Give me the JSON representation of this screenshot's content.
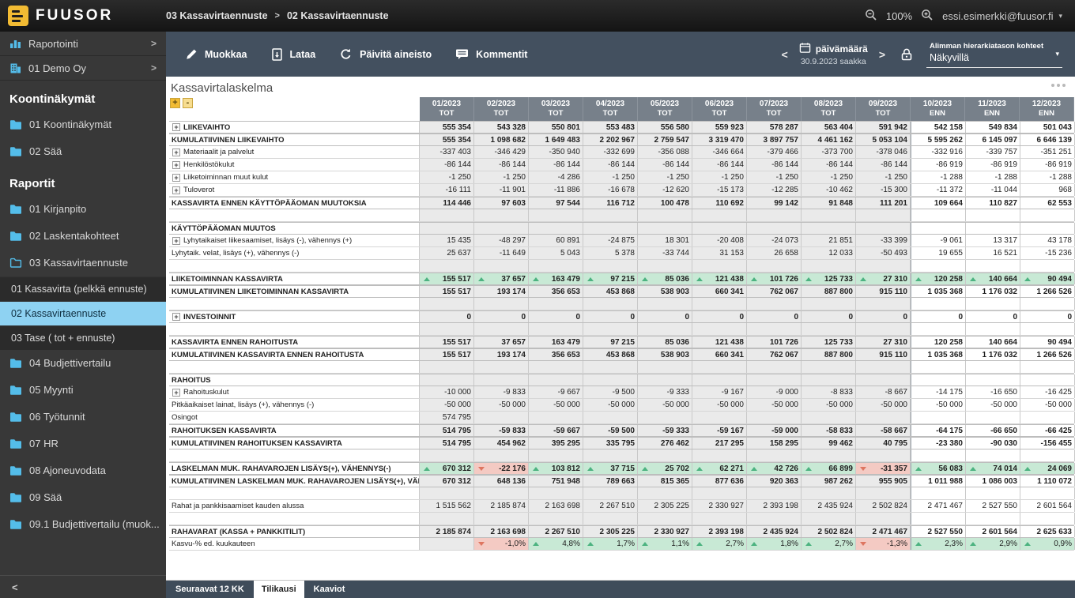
{
  "colors": {
    "logo_yellow": "#f2bb33",
    "accent": "#54bdea",
    "selected": "#8ed2f2",
    "positive": "#4db381",
    "negative": "#de7560",
    "positive_bg": "#c8e9d5",
    "negative_bg": "#f4cac3"
  },
  "topbar": {
    "logo_text": "FUUSOR",
    "breadcrumb": [
      "03 Kassavirtaennuste",
      "02 Kassavirtaennuste"
    ],
    "zoom_level": "100%",
    "user_email": "essi.esimerkki@fuusor.fi"
  },
  "sidebar": {
    "nav_top": [
      {
        "label": "Raportointi",
        "icon": "bar-chart-icon"
      },
      {
        "label": "01 Demo Oy",
        "icon": "company-icon"
      }
    ],
    "sections": [
      {
        "title": "Koontinäkymät",
        "items": [
          {
            "label": "01 Koontinäkymät",
            "icon": "folder-icon"
          },
          {
            "label": "02 Sää",
            "icon": "folder-icon"
          }
        ]
      },
      {
        "title": "Raportit",
        "items": [
          {
            "label": "01 Kirjanpito",
            "icon": "folder-icon"
          },
          {
            "label": "02 Laskentakohteet",
            "icon": "folder-icon"
          },
          {
            "label": "03 Kassavirtaennuste",
            "icon": "folder-open-icon",
            "children": [
              {
                "label": "01 Kassavirta (pelkkä ennuste)"
              },
              {
                "label": "02 Kassavirtaennuste",
                "selected": true
              },
              {
                "label": "03 Tase ( tot + ennuste)"
              }
            ]
          },
          {
            "label": "04 Budjettivertailu",
            "icon": "folder-icon"
          },
          {
            "label": "05 Myynti",
            "icon": "folder-icon"
          },
          {
            "label": "06 Työtunnit",
            "icon": "folder-icon"
          },
          {
            "label": "07 HR",
            "icon": "folder-icon"
          },
          {
            "label": "08 Ajoneuvodata",
            "icon": "folder-icon"
          },
          {
            "label": "09 Sää",
            "icon": "folder-icon"
          },
          {
            "label": "09.1 Budjettivertailu (muok...",
            "icon": "folder-icon"
          }
        ]
      }
    ]
  },
  "toolbar": {
    "buttons": [
      {
        "label": "Muokkaa",
        "icon": "pencil-icon"
      },
      {
        "label": "Lataa",
        "icon": "download-icon"
      },
      {
        "label": "Päivitä aineisto",
        "icon": "refresh-icon"
      },
      {
        "label": "Kommentit",
        "icon": "comment-icon"
      }
    ],
    "date_nav": {
      "label": "päivämäärä",
      "sublabel": "30.9.2023 saakka"
    },
    "hierarchy_dropdown": {
      "label": "Alimman hierarkiatason kohteet",
      "value": "Näkyvillä"
    }
  },
  "widget": {
    "title": "Kassavirtalaskelma",
    "expand_all": "+",
    "collapse_all": "-"
  },
  "chart_data": {
    "type": "table",
    "title": "Kassavirtalaskelma",
    "columns": [
      {
        "month": "01/2023",
        "type": "TOT"
      },
      {
        "month": "02/2023",
        "type": "TOT"
      },
      {
        "month": "03/2023",
        "type": "TOT"
      },
      {
        "month": "04/2023",
        "type": "TOT"
      },
      {
        "month": "05/2023",
        "type": "TOT"
      },
      {
        "month": "06/2023",
        "type": "TOT"
      },
      {
        "month": "07/2023",
        "type": "TOT"
      },
      {
        "month": "08/2023",
        "type": "TOT"
      },
      {
        "month": "09/2023",
        "type": "TOT"
      },
      {
        "month": "10/2023",
        "type": "ENN"
      },
      {
        "month": "11/2023",
        "type": "ENN"
      },
      {
        "month": "12/2023",
        "type": "ENN"
      }
    ],
    "rows": [
      {
        "label": "LIIKEVAIHTO",
        "bold": true,
        "exp": true,
        "values": [
          "555 354",
          "543 328",
          "550 801",
          "553 483",
          "556 580",
          "559 923",
          "578 287",
          "563 404",
          "591 942",
          "542 158",
          "549 834",
          "501 043"
        ]
      },
      {
        "label": "KUMULATIIVINEN LIIKEVAIHTO",
        "bold": true,
        "values": [
          "555 354",
          "1 098 682",
          "1 649 483",
          "2 202 967",
          "2 759 547",
          "3 319 470",
          "3 897 757",
          "4 461 162",
          "5 053 104",
          "5 595 262",
          "6 145 097",
          "6 646 139"
        ]
      },
      {
        "label": "Materiaalit ja palvelut",
        "exp": true,
        "values": [
          "-337 403",
          "-346 429",
          "-350 940",
          "-332 699",
          "-356 088",
          "-346 664",
          "-379 466",
          "-373 700",
          "-378 046",
          "-332 916",
          "-339 757",
          "-351 251"
        ]
      },
      {
        "label": "Henkilöstökulut",
        "exp": true,
        "values": [
          "-86 144",
          "-86 144",
          "-86 144",
          "-86 144",
          "-86 144",
          "-86 144",
          "-86 144",
          "-86 144",
          "-86 144",
          "-86 919",
          "-86 919",
          "-86 919"
        ]
      },
      {
        "label": "Liiketoiminnan muut kulut",
        "exp": true,
        "values": [
          "-1 250",
          "-1 250",
          "-4 286",
          "-1 250",
          "-1 250",
          "-1 250",
          "-1 250",
          "-1 250",
          "-1 250",
          "-1 288",
          "-1 288",
          "-1 288"
        ]
      },
      {
        "label": "Tuloverot",
        "exp": true,
        "values": [
          "-16 111",
          "-11 901",
          "-11 886",
          "-16 678",
          "-12 620",
          "-15 173",
          "-12 285",
          "-10 462",
          "-15 300",
          "-11 372",
          "-11 044",
          "968"
        ]
      },
      {
        "label": "KASSAVIRTA ENNEN KÄYTTÖPÄÄOMAN MUUTOKSIA",
        "bold": true,
        "values": [
          "114 446",
          "97 603",
          "97 544",
          "116 712",
          "100 478",
          "110 692",
          "99 142",
          "91 848",
          "111 201",
          "109 664",
          "110 827",
          "62 553"
        ]
      },
      {
        "blank": true
      },
      {
        "label": "KÄYTTÖPÄÄOMAN MUUTOS",
        "bold": true,
        "values": [
          "",
          "",
          "",
          "",
          "",
          "",
          "",
          "",
          "",
          "",
          "",
          ""
        ]
      },
      {
        "label": "Lyhytaikaiset liikesaamiset, lisäys (-), vähennys (+)",
        "exp": true,
        "values": [
          "15 435",
          "-48 297",
          "60 891",
          "-24 875",
          "18 301",
          "-20 408",
          "-24 073",
          "21 851",
          "-33 399",
          "-9 061",
          "13 317",
          "43 178"
        ]
      },
      {
        "label": "Lyhytaik. velat, lisäys (+), vähennys (-)",
        "values": [
          "25 637",
          "-11 649",
          "5 043",
          "5 378",
          "-33 744",
          "31 153",
          "26 658",
          "12 033",
          "-50 493",
          "19 655",
          "16 521",
          "-15 236"
        ]
      },
      {
        "blank": true
      },
      {
        "label": "LIIKETOIMINNAN KASSAVIRTA",
        "bold": true,
        "ind": true,
        "values": [
          "155 517",
          "37 657",
          "163 479",
          "97 215",
          "85 036",
          "121 438",
          "101 726",
          "125 733",
          "27 310",
          "120 258",
          "140 664",
          "90 494"
        ]
      },
      {
        "label": "KUMULATIIVINEN LIIKETOIMINNAN KASSAVIRTA",
        "bold": true,
        "values": [
          "155 517",
          "193 174",
          "356 653",
          "453 868",
          "538 903",
          "660 341",
          "762 067",
          "887 800",
          "915 110",
          "1 035 368",
          "1 176 032",
          "1 266 526"
        ]
      },
      {
        "blank": true
      },
      {
        "label": "INVESTOINNIT",
        "bold": true,
        "exp": true,
        "values": [
          "0",
          "0",
          "0",
          "0",
          "0",
          "0",
          "0",
          "0",
          "0",
          "0",
          "0",
          "0"
        ]
      },
      {
        "blank": true
      },
      {
        "label": "KASSAVIRTA ENNEN RAHOITUSTA",
        "bold": true,
        "values": [
          "155 517",
          "37 657",
          "163 479",
          "97 215",
          "85 036",
          "121 438",
          "101 726",
          "125 733",
          "27 310",
          "120 258",
          "140 664",
          "90 494"
        ]
      },
      {
        "label": "KUMULATIIVINEN KASSAVIRTA ENNEN RAHOITUSTA",
        "bold": true,
        "values": [
          "155 517",
          "193 174",
          "356 653",
          "453 868",
          "538 903",
          "660 341",
          "762 067",
          "887 800",
          "915 110",
          "1 035 368",
          "1 176 032",
          "1 266 526"
        ]
      },
      {
        "blank": true
      },
      {
        "label": "RAHOITUS",
        "bold": true,
        "values": [
          "",
          "",
          "",
          "",
          "",
          "",
          "",
          "",
          "",
          "",
          "",
          ""
        ]
      },
      {
        "label": "Rahoituskulut",
        "exp": true,
        "values": [
          "-10 000",
          "-9 833",
          "-9 667",
          "-9 500",
          "-9 333",
          "-9 167",
          "-9 000",
          "-8 833",
          "-8 667",
          "-14 175",
          "-16 650",
          "-16 425"
        ]
      },
      {
        "label": "Pitkäaikaiset lainat, lisäys (+), vähennys (-)",
        "values": [
          "-50 000",
          "-50 000",
          "-50 000",
          "-50 000",
          "-50 000",
          "-50 000",
          "-50 000",
          "-50 000",
          "-50 000",
          "-50 000",
          "-50 000",
          "-50 000"
        ]
      },
      {
        "label": "Osingot",
        "values": [
          "574 795",
          "",
          "",
          "",
          "",
          "",
          "",
          "",
          "",
          "",
          "",
          ""
        ]
      },
      {
        "label": "RAHOITUKSEN KASSAVIRTA",
        "bold": true,
        "values": [
          "514 795",
          "-59 833",
          "-59 667",
          "-59 500",
          "-59 333",
          "-59 167",
          "-59 000",
          "-58 833",
          "-58 667",
          "-64 175",
          "-66 650",
          "-66 425"
        ]
      },
      {
        "label": "KUMULATIIVINEN RAHOITUKSEN KASSAVIRTA",
        "bold": true,
        "values": [
          "514 795",
          "454 962",
          "395 295",
          "335 795",
          "276 462",
          "217 295",
          "158 295",
          "99 462",
          "40 795",
          "-23 380",
          "-90 030",
          "-156 455"
        ]
      },
      {
        "blank": true
      },
      {
        "label": "LASKELMAN MUK. RAHAVAROJEN LISÄYS(+), VÄHENNYS(-)",
        "bold": true,
        "ind": true,
        "values": [
          "670 312",
          "-22 176",
          "103 812",
          "37 715",
          "25 702",
          "62 271",
          "42 726",
          "66 899",
          "-31 357",
          "56 083",
          "74 014",
          "24 069"
        ]
      },
      {
        "label": "KUMULATIIVINEN LASKELMAN MUK. RAHAVAROJEN LISÄYS(+), VÄHENNYS(-)",
        "bold": true,
        "values": [
          "670 312",
          "648 136",
          "751 948",
          "789 663",
          "815 365",
          "877 636",
          "920 363",
          "987 262",
          "955 905",
          "1 011 988",
          "1 086 003",
          "1 110 072"
        ]
      },
      {
        "blank": true
      },
      {
        "label": "Rahat ja pankkisaamiset kauden alussa",
        "values": [
          "1 515 562",
          "2 185 874",
          "2 163 698",
          "2 267 510",
          "2 305 225",
          "2 330 927",
          "2 393 198",
          "2 435 924",
          "2 502 824",
          "2 471 467",
          "2 527 550",
          "2 601 564"
        ]
      },
      {
        "blank": true
      },
      {
        "label": "RAHAVARAT (KASSA + PANKKITILIT)",
        "bold": true,
        "values": [
          "2 185 874",
          "2 163 698",
          "2 267 510",
          "2 305 225",
          "2 330 927",
          "2 393 198",
          "2 435 924",
          "2 502 824",
          "2 471 467",
          "2 527 550",
          "2 601 564",
          "2 625 633"
        ]
      },
      {
        "label": "Kasvu-% ed. kuukauteen",
        "ind": true,
        "values": [
          "",
          "-1,0%",
          "4,8%",
          "1,7%",
          "1,1%",
          "2,7%",
          "1,8%",
          "2,7%",
          "-1,3%",
          "2,3%",
          "2,9%",
          "0,9%"
        ]
      }
    ]
  },
  "tabs": [
    {
      "label": "Seuraavat 12 KK"
    },
    {
      "label": "Tilikausi",
      "active": true
    },
    {
      "label": "Kaaviot"
    }
  ]
}
